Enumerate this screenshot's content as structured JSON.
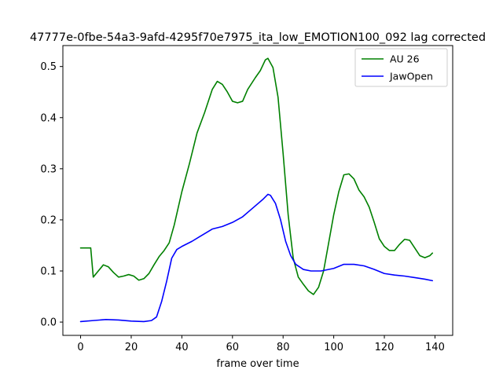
{
  "chart_data": {
    "type": "line",
    "title": "47777e-0fbe-54a3-9afd-4295f70e7975_ita_low_EMOTION100_092  lag corrected",
    "xlabel": "frame over time",
    "ylabel": "",
    "xlim": [
      -7,
      147
    ],
    "ylim": [
      -0.026,
      0.541
    ],
    "xticks": [
      0,
      20,
      40,
      60,
      80,
      100,
      120,
      140
    ],
    "yticks": [
      0.0,
      0.1,
      0.2,
      0.3,
      0.4,
      0.5
    ],
    "xtick_labels": [
      "0",
      "20",
      "40",
      "60",
      "80",
      "100",
      "120",
      "140"
    ],
    "ytick_labels": [
      "0.0",
      "0.1",
      "0.2",
      "0.3",
      "0.4",
      "0.5"
    ],
    "grid": false,
    "legend_position": "upper right",
    "series": [
      {
        "name": "AU 26",
        "color": "#008000",
        "points": [
          [
            0,
            0.145
          ],
          [
            2,
            0.145
          ],
          [
            4,
            0.145
          ],
          [
            5,
            0.088
          ],
          [
            7,
            0.1
          ],
          [
            9,
            0.112
          ],
          [
            11,
            0.108
          ],
          [
            13,
            0.097
          ],
          [
            15,
            0.088
          ],
          [
            17,
            0.09
          ],
          [
            19,
            0.093
          ],
          [
            21,
            0.09
          ],
          [
            23,
            0.082
          ],
          [
            25,
            0.085
          ],
          [
            27,
            0.095
          ],
          [
            29,
            0.112
          ],
          [
            31,
            0.128
          ],
          [
            33,
            0.14
          ],
          [
            35,
            0.155
          ],
          [
            37,
            0.19
          ],
          [
            40,
            0.255
          ],
          [
            43,
            0.31
          ],
          [
            46,
            0.37
          ],
          [
            49,
            0.41
          ],
          [
            52,
            0.455
          ],
          [
            54,
            0.471
          ],
          [
            56,
            0.465
          ],
          [
            58,
            0.45
          ],
          [
            60,
            0.432
          ],
          [
            62,
            0.429
          ],
          [
            64,
            0.432
          ],
          [
            66,
            0.455
          ],
          [
            69,
            0.478
          ],
          [
            71,
            0.492
          ],
          [
            73,
            0.513
          ],
          [
            74,
            0.516
          ],
          [
            76,
            0.498
          ],
          [
            78,
            0.44
          ],
          [
            80,
            0.33
          ],
          [
            82,
            0.21
          ],
          [
            84,
            0.125
          ],
          [
            86,
            0.088
          ],
          [
            88,
            0.074
          ],
          [
            90,
            0.061
          ],
          [
            92,
            0.054
          ],
          [
            94,
            0.068
          ],
          [
            96,
            0.1
          ],
          [
            98,
            0.155
          ],
          [
            100,
            0.21
          ],
          [
            102,
            0.255
          ],
          [
            104,
            0.288
          ],
          [
            106,
            0.29
          ],
          [
            108,
            0.28
          ],
          [
            110,
            0.258
          ],
          [
            112,
            0.245
          ],
          [
            114,
            0.225
          ],
          [
            116,
            0.195
          ],
          [
            118,
            0.163
          ],
          [
            120,
            0.148
          ],
          [
            122,
            0.14
          ],
          [
            124,
            0.14
          ],
          [
            126,
            0.152
          ],
          [
            128,
            0.162
          ],
          [
            130,
            0.16
          ],
          [
            132,
            0.145
          ],
          [
            134,
            0.13
          ],
          [
            136,
            0.126
          ],
          [
            138,
            0.13
          ],
          [
            139,
            0.135
          ]
        ]
      },
      {
        "name": "JawOpen",
        "color": "#0000ff",
        "points": [
          [
            0,
            0.001
          ],
          [
            5,
            0.003
          ],
          [
            10,
            0.005
          ],
          [
            15,
            0.004
          ],
          [
            20,
            0.002
          ],
          [
            25,
            0.001
          ],
          [
            28,
            0.003
          ],
          [
            30,
            0.01
          ],
          [
            32,
            0.04
          ],
          [
            34,
            0.08
          ],
          [
            36,
            0.125
          ],
          [
            38,
            0.142
          ],
          [
            40,
            0.148
          ],
          [
            44,
            0.158
          ],
          [
            48,
            0.17
          ],
          [
            52,
            0.182
          ],
          [
            56,
            0.187
          ],
          [
            60,
            0.195
          ],
          [
            64,
            0.206
          ],
          [
            68,
            0.223
          ],
          [
            72,
            0.24
          ],
          [
            74,
            0.25
          ],
          [
            75,
            0.248
          ],
          [
            77,
            0.232
          ],
          [
            79,
            0.2
          ],
          [
            81,
            0.158
          ],
          [
            83,
            0.13
          ],
          [
            85,
            0.113
          ],
          [
            88,
            0.103
          ],
          [
            91,
            0.1
          ],
          [
            95,
            0.1
          ],
          [
            100,
            0.105
          ],
          [
            104,
            0.113
          ],
          [
            108,
            0.113
          ],
          [
            112,
            0.11
          ],
          [
            116,
            0.103
          ],
          [
            120,
            0.095
          ],
          [
            124,
            0.092
          ],
          [
            128,
            0.09
          ],
          [
            132,
            0.087
          ],
          [
            136,
            0.084
          ],
          [
            139,
            0.081
          ]
        ]
      }
    ]
  }
}
